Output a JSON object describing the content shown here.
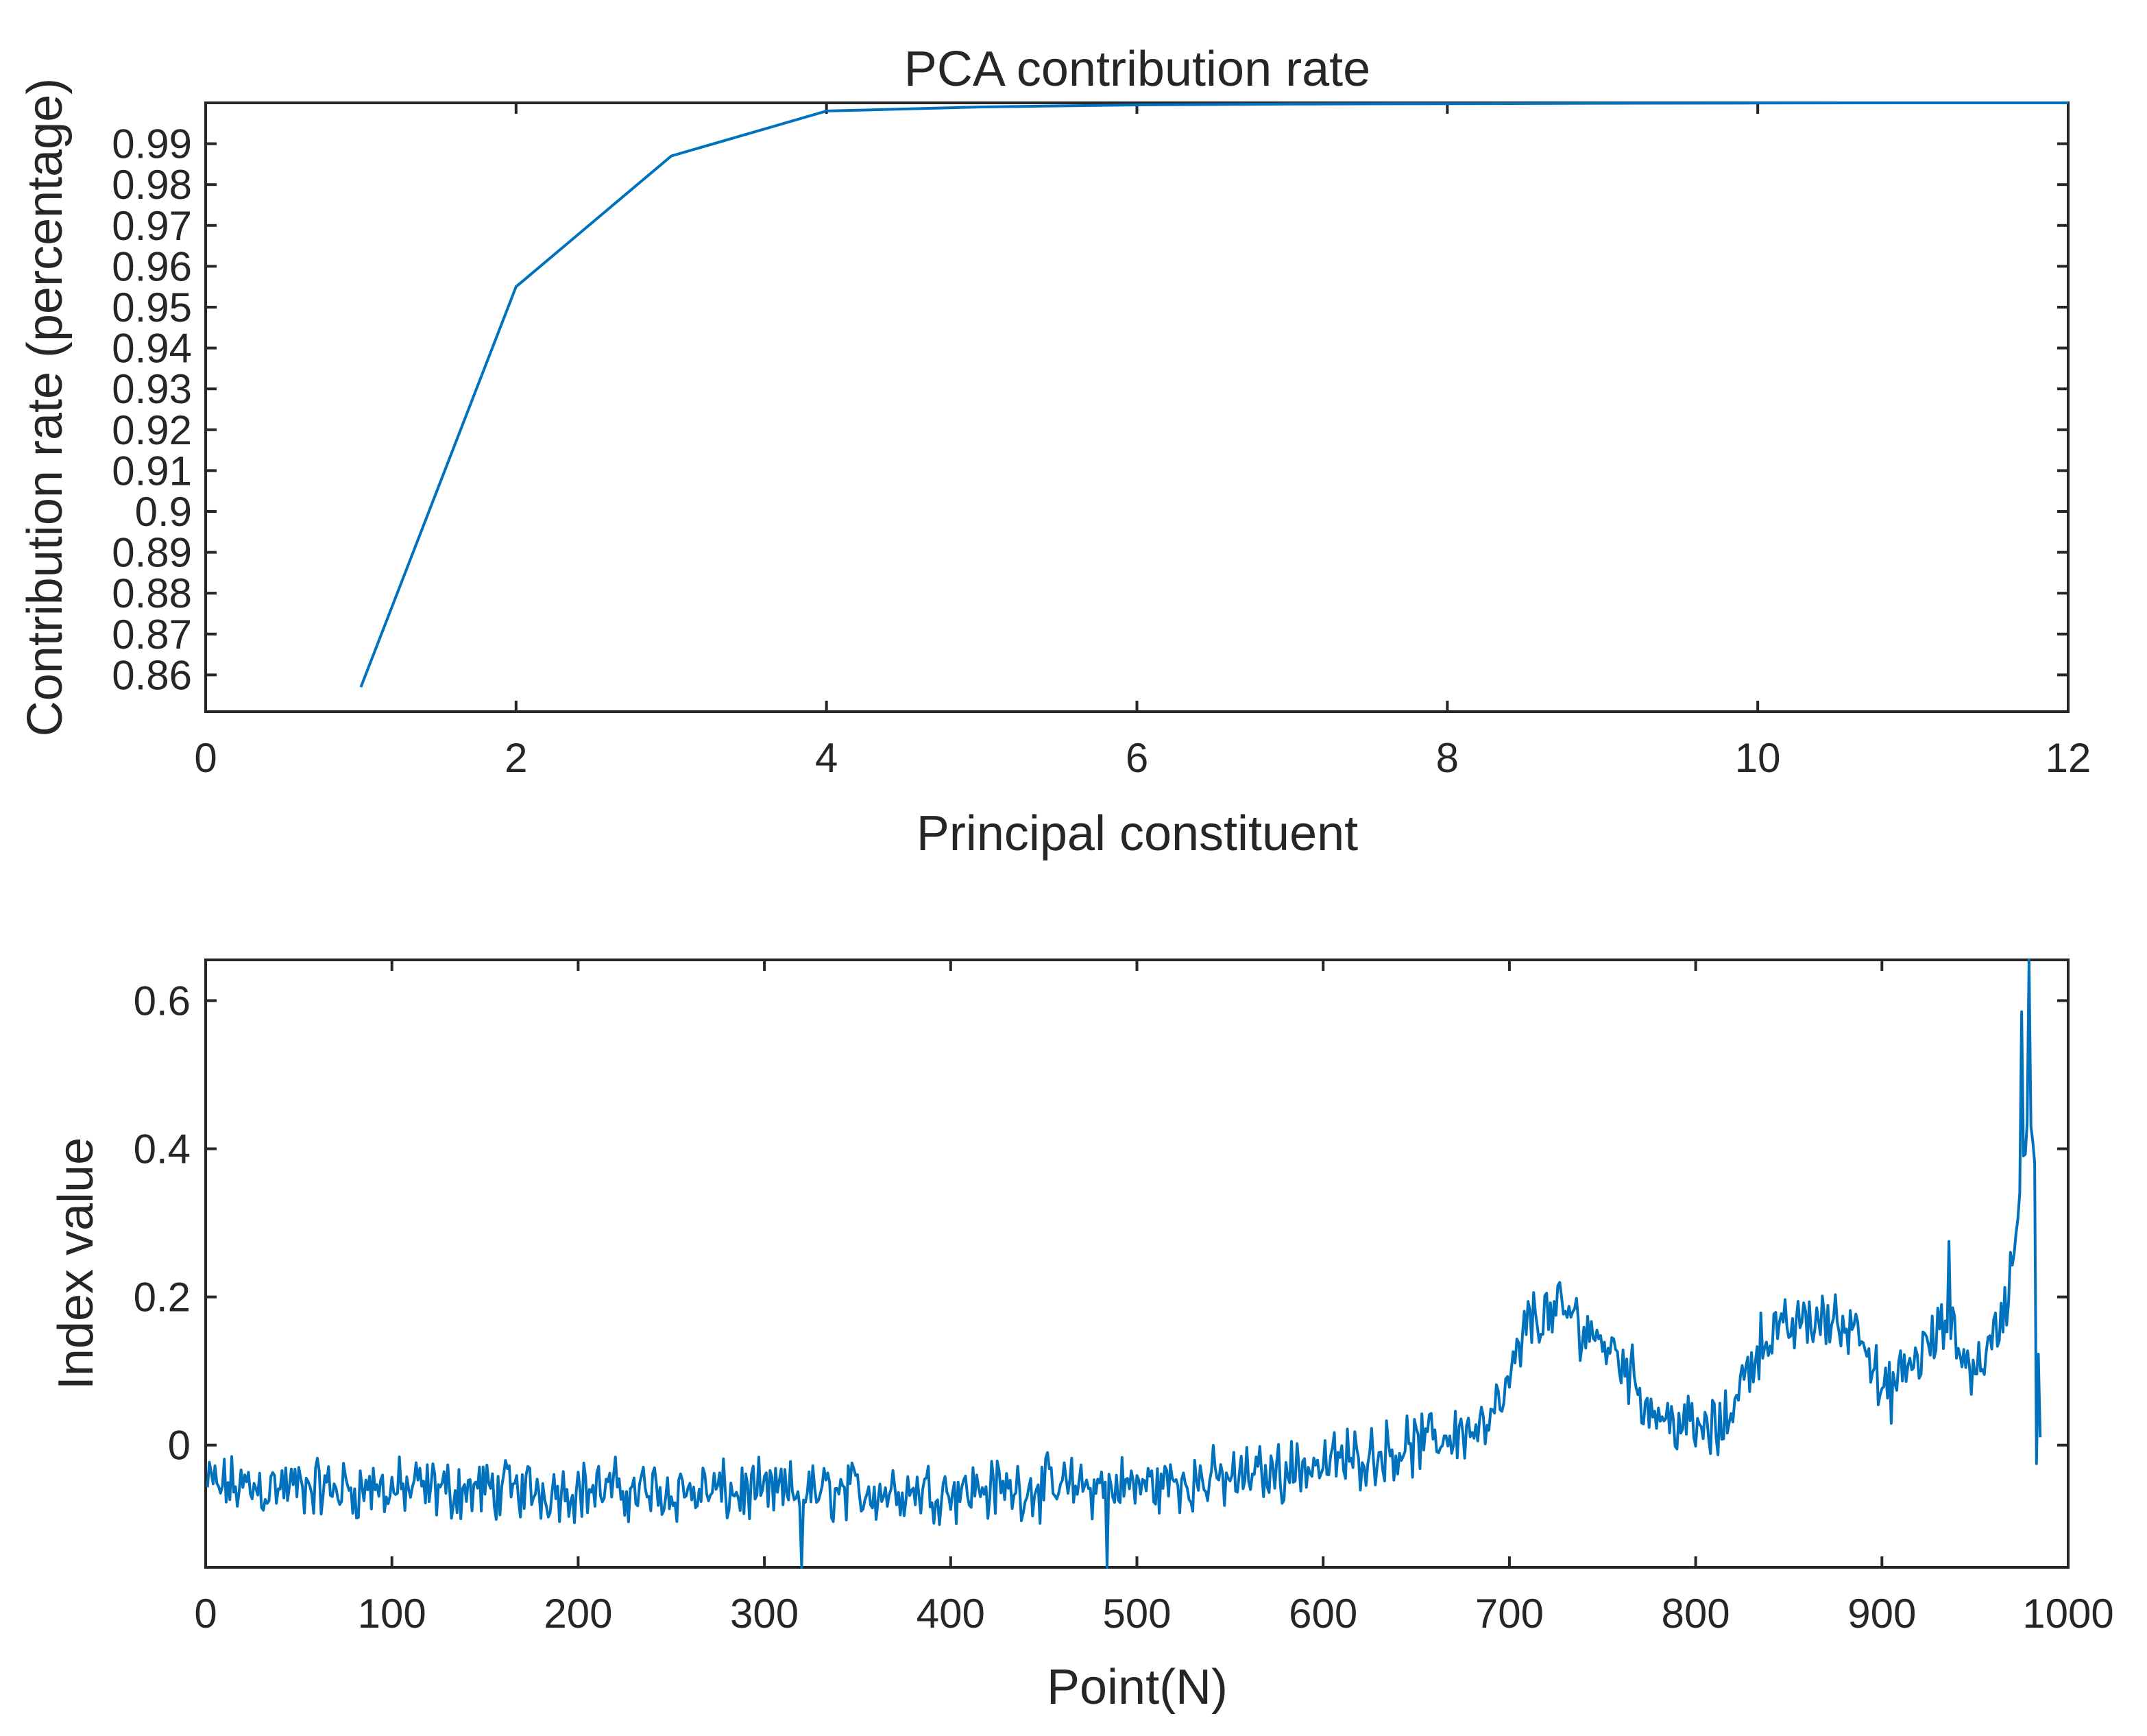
{
  "chart_data": [
    {
      "type": "line",
      "title": "PCA contribution rate",
      "xlabel": "Principal constituent",
      "ylabel": "Contribution rate (percentage)",
      "xlim": [
        0,
        12
      ],
      "ylim": [
        0.851,
        1.0
      ],
      "xticks": [
        0,
        2,
        4,
        6,
        8,
        10,
        12
      ],
      "xtick_labels": [
        "0",
        "2",
        "4",
        "6",
        "8",
        "10",
        "12"
      ],
      "yticks": [
        0.86,
        0.87,
        0.88,
        0.89,
        0.9,
        0.91,
        0.92,
        0.93,
        0.94,
        0.95,
        0.96,
        0.97,
        0.98,
        0.99
      ],
      "ytick_labels": [
        "0.86",
        "0.87",
        "0.88",
        "0.89",
        "0.9",
        "0.91",
        "0.92",
        "0.93",
        "0.94",
        "0.95",
        "0.96",
        "0.97",
        "0.98",
        "0.99"
      ],
      "x": [
        1,
        2,
        3,
        4,
        5,
        6,
        7,
        8,
        9,
        10,
        11,
        12
      ],
      "y": [
        0.857,
        0.955,
        0.987,
        0.998,
        0.999,
        0.9995,
        0.9997,
        0.9998,
        0.9999,
        0.99995,
        1.0,
        1.0
      ],
      "color": "#0072bd",
      "grid": false
    },
    {
      "type": "line",
      "title": "",
      "xlabel": "Point(N)",
      "ylabel": "Index value",
      "xlim": [
        0,
        1000
      ],
      "ylim": [
        -0.165,
        0.655
      ],
      "xticks": [
        0,
        100,
        200,
        300,
        400,
        500,
        600,
        700,
        800,
        900,
        1000
      ],
      "xtick_labels": [
        "0",
        "100",
        "200",
        "300",
        "400",
        "500",
        "600",
        "700",
        "800",
        "900",
        "1000"
      ],
      "yticks": [
        0,
        0.2,
        0.4,
        0.6
      ],
      "ytick_labels": [
        "0",
        "0.2",
        "0.4",
        "0.6"
      ],
      "n_points": 985,
      "trend": [
        [
          0,
          -0.055
        ],
        [
          100,
          -0.06
        ],
        [
          200,
          -0.06
        ],
        [
          300,
          -0.065
        ],
        [
          400,
          -0.06
        ],
        [
          500,
          -0.055
        ],
        [
          550,
          -0.045
        ],
        [
          600,
          -0.025
        ],
        [
          650,
          0.0
        ],
        [
          690,
          0.03
        ],
        [
          700,
          0.08
        ],
        [
          710,
          0.17
        ],
        [
          730,
          0.18
        ],
        [
          760,
          0.12
        ],
        [
          775,
          0.05
        ],
        [
          800,
          0.02
        ],
        [
          815,
          0.02
        ],
        [
          820,
          0.06
        ],
        [
          835,
          0.14
        ],
        [
          860,
          0.17
        ],
        [
          890,
          0.16
        ],
        [
          900,
          0.06
        ],
        [
          920,
          0.12
        ],
        [
          935,
          0.16
        ],
        [
          950,
          0.1
        ],
        [
          965,
          0.17
        ],
        [
          972,
          0.28
        ],
        [
          978,
          0.45
        ],
        [
          982,
          0.4
        ],
        [
          985,
          -0.02
        ]
      ],
      "noise_amplitude": 0.03,
      "spikes": [
        [
          320,
          -0.165
        ],
        [
          484,
          -0.165
        ],
        [
          936,
          0.275
        ],
        [
          975,
          0.585
        ],
        [
          979,
          0.655
        ],
        [
          983,
          -0.025
        ]
      ],
      "color": "#0072bd",
      "grid": false
    }
  ]
}
